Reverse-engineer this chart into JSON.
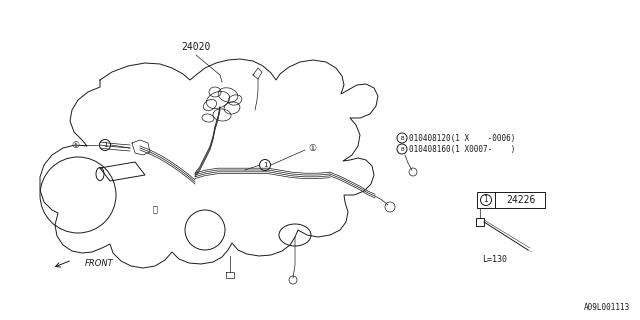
{
  "bg_color": "#ffffff",
  "line_color": "#1a1a1a",
  "fig_width": 6.4,
  "fig_height": 3.2,
  "dpi": 100,
  "part_number_main": "24020",
  "part_number_legend": "24226",
  "callout_label": "1",
  "ref_label_B1": "010408120(1 X    -0006)",
  "ref_label_B2": "010408160(1 X0007-    )",
  "front_label": "FRONT",
  "length_label": "L=130",
  "watermark": "A09L001113"
}
